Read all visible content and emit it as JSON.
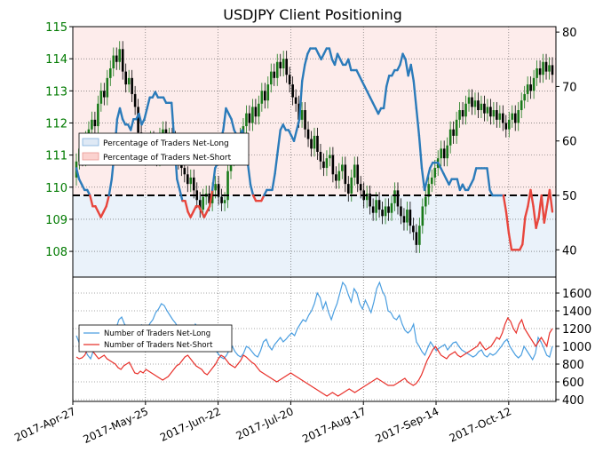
{
  "chart_data": [
    {
      "type": "candlestick+line",
      "title": "USDJPY Client Positioning",
      "x_dates": [
        "2017-Apr-27",
        "2017-May-25",
        "2017-Jun-22",
        "2017-Jul-20",
        "2017-Aug-17",
        "2017-Sep-14",
        "2017-Oct-12"
      ],
      "y_left": {
        "ticks": [
          108,
          109,
          110,
          111,
          112,
          113,
          114,
          115
        ],
        "ylim": [
          107.2,
          115.0
        ],
        "color": "#007a00"
      },
      "y_right": {
        "ticks": [
          40,
          50,
          60,
          70,
          80
        ],
        "ylim": [
          35,
          81
        ]
      },
      "reference_line": 50,
      "legend": {
        "placement": "middle-left",
        "entries": [
          "Percentage of Traders Net-Long",
          "Percentage of Traders Net-Short"
        ]
      },
      "colors": {
        "net_long": "#2b7bba",
        "net_short": "#e8463d",
        "long_fill": "#dfe9f5",
        "short_fill": "#fbe3e1",
        "bull": "#1a7a1a",
        "bear": "#000000"
      },
      "pct_net_long": [
        55,
        53,
        52,
        51,
        51,
        50,
        48,
        48,
        47,
        46,
        47,
        48,
        50,
        53,
        58,
        64,
        66,
        64,
        63,
        63,
        62,
        64,
        64,
        65,
        63,
        64,
        66,
        68,
        68,
        69,
        68,
        68,
        68,
        67,
        67,
        67,
        60,
        53,
        51,
        49,
        49,
        47,
        46,
        47,
        48,
        48,
        47,
        46,
        47,
        48,
        51,
        55,
        56,
        60,
        62,
        66,
        65,
        64,
        62,
        61,
        61,
        62,
        60,
        56,
        52,
        50,
        49,
        49,
        49,
        50,
        51,
        51,
        51,
        54,
        58,
        62,
        63,
        62,
        62,
        61,
        60,
        62,
        64,
        71,
        74,
        76,
        77,
        77,
        77,
        76,
        75,
        76,
        77,
        77,
        75,
        74,
        76,
        75,
        74,
        74,
        75,
        73,
        73,
        73,
        72,
        71,
        70,
        69,
        68,
        67,
        66,
        65,
        66,
        66,
        70,
        72,
        72,
        73,
        73,
        74,
        76,
        75,
        72,
        74,
        71,
        66,
        61,
        55,
        51,
        53,
        55,
        56,
        56,
        56,
        55,
        54,
        53,
        52,
        53,
        53,
        53,
        51,
        52,
        51,
        51,
        52,
        53,
        55,
        55,
        55,
        55,
        55,
        51,
        50,
        50,
        50,
        50,
        50,
        47,
        43,
        40,
        40,
        40,
        40,
        41,
        46,
        48,
        51,
        48,
        44,
        46,
        50,
        45,
        48,
        51,
        47
      ],
      "candles_open_close": [
        [
          110.3,
          110.8
        ],
        [
          110.8,
          111.2
        ],
        [
          111.2,
          110.9
        ],
        [
          110.9,
          111.5
        ],
        [
          111.5,
          111.8
        ],
        [
          111.8,
          112.1
        ],
        [
          112.1,
          111.9
        ],
        [
          111.9,
          112.6
        ],
        [
          112.6,
          113.0
        ],
        [
          113.0,
          112.8
        ],
        [
          112.8,
          113.4
        ],
        [
          113.4,
          113.7
        ],
        [
          113.7,
          114.1
        ],
        [
          114.1,
          113.9
        ],
        [
          113.9,
          114.3
        ],
        [
          114.3,
          113.6
        ],
        [
          113.6,
          113.2
        ],
        [
          113.2,
          113.4
        ],
        [
          113.4,
          112.9
        ],
        [
          112.9,
          112.5
        ],
        [
          112.5,
          111.7
        ],
        [
          111.7,
          111.2
        ],
        [
          111.2,
          111.4
        ],
        [
          111.4,
          111.1
        ],
        [
          111.1,
          111.5
        ],
        [
          111.5,
          111.3
        ],
        [
          111.3,
          110.9
        ],
        [
          110.9,
          111.6
        ],
        [
          111.6,
          111.8
        ],
        [
          111.8,
          111.4
        ],
        [
          111.4,
          111.6
        ],
        [
          111.6,
          111.5
        ],
        [
          111.5,
          111.0
        ],
        [
          111.0,
          110.8
        ],
        [
          110.8,
          110.6
        ],
        [
          110.6,
          110.4
        ],
        [
          110.4,
          110.1
        ],
        [
          110.1,
          110.3
        ],
        [
          110.3,
          109.9
        ],
        [
          109.9,
          109.6
        ],
        [
          109.6,
          109.3
        ],
        [
          109.3,
          109.7
        ],
        [
          109.7,
          109.8
        ],
        [
          109.8,
          109.5
        ],
        [
          109.5,
          109.9
        ],
        [
          109.9,
          110.1
        ],
        [
          110.1,
          109.7
        ],
        [
          109.7,
          109.5
        ],
        [
          109.5,
          109.6
        ],
        [
          109.6,
          110.5
        ],
        [
          110.5,
          110.9
        ],
        [
          110.9,
          111.3
        ],
        [
          111.3,
          111.1
        ],
        [
          111.1,
          111.6
        ],
        [
          111.6,
          111.9
        ],
        [
          111.9,
          112.3
        ],
        [
          112.3,
          112.0
        ],
        [
          112.0,
          112.5
        ],
        [
          112.5,
          112.2
        ],
        [
          112.2,
          112.6
        ],
        [
          112.6,
          113.0
        ],
        [
          113.0,
          112.7
        ],
        [
          112.7,
          113.2
        ],
        [
          113.2,
          113.6
        ],
        [
          113.6,
          113.4
        ],
        [
          113.4,
          113.9
        ],
        [
          113.9,
          113.7
        ],
        [
          113.7,
          114.0
        ],
        [
          114.0,
          113.5
        ],
        [
          113.5,
          113.2
        ],
        [
          113.2,
          112.8
        ],
        [
          112.8,
          112.6
        ],
        [
          112.6,
          112.1
        ],
        [
          112.1,
          112.4
        ],
        [
          112.4,
          111.8
        ],
        [
          111.8,
          111.5
        ],
        [
          111.5,
          111.2
        ],
        [
          111.2,
          111.6
        ],
        [
          111.6,
          111.1
        ],
        [
          111.1,
          110.8
        ],
        [
          110.8,
          110.6
        ],
        [
          110.6,
          110.9
        ],
        [
          110.9,
          111.0
        ],
        [
          111.0,
          110.4
        ],
        [
          110.4,
          110.2
        ],
        [
          110.2,
          110.5
        ],
        [
          110.5,
          110.7
        ],
        [
          110.7,
          110.1
        ],
        [
          110.1,
          109.8
        ],
        [
          109.8,
          110.3
        ],
        [
          110.3,
          110.7
        ],
        [
          110.7,
          110.1
        ],
        [
          110.1,
          109.9
        ],
        [
          109.9,
          109.6
        ],
        [
          109.6,
          109.8
        ],
        [
          109.8,
          109.4
        ],
        [
          109.4,
          109.2
        ],
        [
          109.2,
          109.6
        ],
        [
          109.6,
          109.3
        ],
        [
          109.3,
          109.1
        ],
        [
          109.1,
          109.4
        ],
        [
          109.4,
          109.2
        ],
        [
          109.2,
          109.5
        ],
        [
          109.5,
          109.9
        ],
        [
          109.9,
          109.4
        ],
        [
          109.4,
          109.1
        ],
        [
          109.1,
          108.9
        ],
        [
          108.9,
          109.3
        ],
        [
          109.3,
          108.8
        ],
        [
          108.8,
          108.6
        ],
        [
          108.6,
          108.2
        ],
        [
          108.2,
          108.8
        ],
        [
          108.8,
          109.4
        ],
        [
          109.4,
          109.7
        ],
        [
          109.7,
          110.1
        ],
        [
          110.1,
          110.3
        ],
        [
          110.3,
          110.6
        ],
        [
          110.6,
          110.9
        ],
        [
          110.9,
          111.2
        ],
        [
          111.2,
          110.9
        ],
        [
          110.9,
          111.3
        ],
        [
          111.3,
          111.8
        ],
        [
          111.8,
          111.6
        ],
        [
          111.6,
          112.1
        ],
        [
          112.1,
          112.4
        ],
        [
          112.4,
          112.2
        ],
        [
          112.2,
          112.6
        ],
        [
          112.6,
          112.8
        ],
        [
          112.8,
          112.5
        ],
        [
          112.5,
          112.7
        ],
        [
          112.7,
          112.4
        ],
        [
          112.4,
          112.6
        ],
        [
          112.6,
          112.3
        ],
        [
          112.3,
          112.5
        ],
        [
          112.5,
          112.2
        ],
        [
          112.2,
          112.4
        ],
        [
          112.4,
          112.1
        ],
        [
          112.1,
          112.3
        ],
        [
          112.3,
          112.0
        ],
        [
          112.0,
          111.8
        ],
        [
          111.8,
          112.1
        ],
        [
          112.1,
          112.3
        ],
        [
          112.3,
          112.0
        ],
        [
          112.0,
          112.4
        ],
        [
          112.4,
          112.7
        ],
        [
          112.7,
          112.9
        ],
        [
          112.9,
          113.2
        ],
        [
          113.2,
          113.0
        ],
        [
          113.0,
          113.4
        ],
        [
          113.4,
          113.7
        ],
        [
          113.7,
          113.5
        ],
        [
          113.5,
          113.9
        ],
        [
          113.9,
          113.6
        ],
        [
          113.6,
          113.8
        ],
        [
          113.8,
          113.5
        ]
      ]
    },
    {
      "type": "line",
      "y_right": {
        "ticks": [
          400,
          600,
          800,
          1000,
          1200,
          1400,
          1600
        ],
        "ylim": [
          380,
          1780
        ]
      },
      "legend": {
        "placement": "middle-left",
        "entries": [
          "Number of Traders Net-Long",
          "Number of Traders Net-Short"
        ]
      },
      "colors": {
        "net_long": "#4a9ee0",
        "net_short": "#e8302a"
      },
      "net_long": [
        1120,
        1040,
        990,
        960,
        900,
        860,
        950,
        1000,
        1080,
        1050,
        1000,
        1060,
        1120,
        1150,
        1200,
        1300,
        1330,
        1250,
        1200,
        1180,
        1100,
        1180,
        1200,
        1240,
        1180,
        1200,
        1260,
        1300,
        1380,
        1420,
        1480,
        1460,
        1400,
        1350,
        1300,
        1260,
        1200,
        1180,
        1140,
        1100,
        1080,
        1150,
        1250,
        1200,
        1150,
        1100,
        1120,
        1060,
        1000,
        960,
        920,
        880,
        860,
        900,
        960,
        1000,
        940,
        900,
        880,
        920,
        1000,
        980,
        940,
        900,
        880,
        950,
        1050,
        1080,
        1000,
        960,
        1020,
        1060,
        1100,
        1050,
        1080,
        1120,
        1150,
        1120,
        1200,
        1250,
        1300,
        1280,
        1350,
        1400,
        1480,
        1600,
        1550,
        1420,
        1500,
        1380,
        1300,
        1400,
        1480,
        1600,
        1720,
        1680,
        1580,
        1500,
        1650,
        1600,
        1480,
        1420,
        1520,
        1450,
        1380,
        1500,
        1650,
        1720,
        1620,
        1560,
        1400,
        1380,
        1320,
        1300,
        1350,
        1250,
        1180,
        1150,
        1180,
        1250,
        1050,
        1000,
        940,
        900,
        980,
        1050,
        1000,
        950,
        980,
        1000,
        1020,
        960,
        1000,
        1040,
        1050,
        1000,
        960,
        940,
        920,
        900,
        880,
        900,
        940,
        960,
        900,
        880,
        920,
        900,
        920,
        960,
        1000,
        1050,
        1080,
        1000,
        950,
        900,
        870,
        900,
        1000,
        950,
        900,
        850,
        920,
        1100,
        1050,
        980,
        900,
        880,
        1000
      ],
      "net_short": [
        880,
        860,
        870,
        900,
        960,
        1000,
        940,
        900,
        860,
        880,
        900,
        860,
        840,
        820,
        800,
        760,
        740,
        780,
        800,
        820,
        760,
        700,
        690,
        720,
        700,
        740,
        720,
        700,
        680,
        660,
        640,
        620,
        640,
        660,
        700,
        740,
        780,
        800,
        840,
        880,
        900,
        860,
        820,
        780,
        760,
        740,
        700,
        680,
        720,
        760,
        800,
        860,
        900,
        880,
        840,
        800,
        780,
        760,
        800,
        840,
        900,
        880,
        850,
        820,
        800,
        760,
        720,
        700,
        680,
        660,
        640,
        620,
        600,
        620,
        640,
        660,
        680,
        700,
        680,
        660,
        640,
        620,
        600,
        580,
        560,
        540,
        520,
        500,
        480,
        460,
        440,
        460,
        480,
        460,
        440,
        460,
        480,
        500,
        520,
        500,
        480,
        500,
        520,
        540,
        560,
        580,
        600,
        620,
        640,
        620,
        600,
        580,
        560,
        560,
        560,
        580,
        600,
        620,
        640,
        600,
        580,
        560,
        580,
        620,
        680,
        760,
        840,
        900,
        960,
        1000,
        950,
        900,
        880,
        860,
        900,
        920,
        940,
        900,
        880,
        900,
        920,
        940,
        960,
        980,
        1000,
        1050,
        1000,
        960,
        980,
        1000,
        1050,
        1100,
        1080,
        1150,
        1250,
        1320,
        1280,
        1200,
        1150,
        1250,
        1300,
        1200,
        1150,
        1100,
        1050,
        1000,
        1050,
        1100,
        1050,
        1000,
        1150,
        1200
      ]
    }
  ]
}
